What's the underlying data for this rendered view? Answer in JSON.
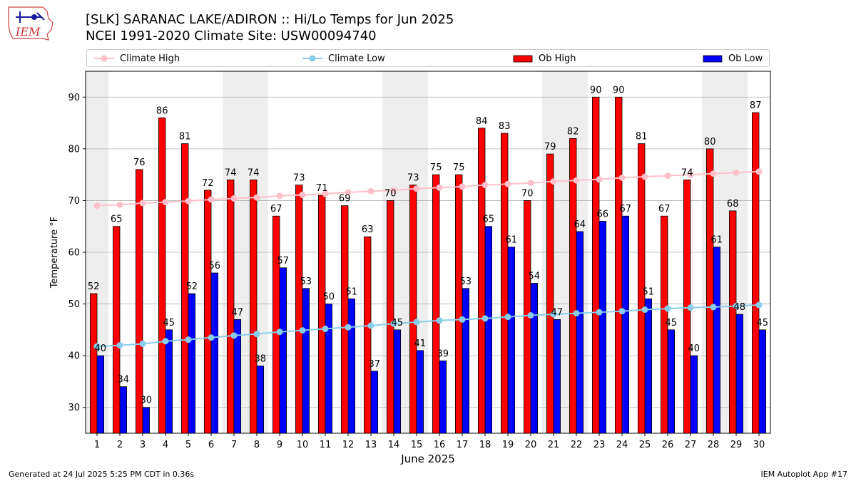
{
  "title_line1": "[SLK] SARANAC LAKE/ADIRON :: Hi/Lo Temps for Jun 2025",
  "title_line2": "NCEI 1991-2020 Climate Site: USW00094740",
  "logo_text": "IEM",
  "footer_left": "Generated at 24 Jul 2025 5:25 PM CDT in 0.36s",
  "footer_right": "IEM Autoplot App #17",
  "colors": {
    "ob_high": "#ff0000",
    "ob_low": "#0000ff",
    "climate_high": "#ffc0cb",
    "climate_low": "#87ceeb",
    "weekend_shade": "#eeeeee",
    "grid": "#b0b0b0"
  },
  "chart_data": {
    "type": "bar",
    "xlabel": "June 2025",
    "ylabel": "Temperature °F",
    "ylim": [
      25,
      95
    ],
    "yticks": [
      30,
      40,
      50,
      60,
      70,
      80,
      90
    ],
    "grid": "horizontal",
    "legend_position": "top",
    "categories": [
      "1",
      "2",
      "3",
      "4",
      "5",
      "6",
      "7",
      "8",
      "9",
      "10",
      "11",
      "12",
      "13",
      "14",
      "15",
      "16",
      "17",
      "18",
      "19",
      "20",
      "21",
      "22",
      "23",
      "24",
      "25",
      "26",
      "27",
      "28",
      "29",
      "30"
    ],
    "shaded_days": [
      1,
      7,
      8,
      14,
      15,
      21,
      22,
      28,
      29
    ],
    "series": [
      {
        "name": "Ob High",
        "type": "bar",
        "values": [
          52,
          65,
          76,
          86,
          81,
          72,
          74,
          74,
          67,
          73,
          71,
          69,
          63,
          70,
          73,
          75,
          75,
          84,
          83,
          70,
          79,
          82,
          90,
          90,
          81,
          67,
          74,
          80,
          68,
          87
        ]
      },
      {
        "name": "Ob Low",
        "type": "bar",
        "values": [
          40,
          34,
          30,
          45,
          52,
          56,
          47,
          38,
          57,
          53,
          50,
          51,
          37,
          45,
          41,
          39,
          53,
          65,
          61,
          54,
          47,
          64,
          66,
          67,
          51,
          45,
          40,
          61,
          48,
          45
        ]
      },
      {
        "name": "Climate High",
        "type": "line",
        "values": [
          69.0,
          69.2,
          69.5,
          69.7,
          69.9,
          70.2,
          70.4,
          70.6,
          70.9,
          71.1,
          71.3,
          71.6,
          71.8,
          72.0,
          72.3,
          72.5,
          72.7,
          73.0,
          73.2,
          73.4,
          73.7,
          73.9,
          74.1,
          74.4,
          74.6,
          74.8,
          75.0,
          75.2,
          75.4,
          75.6
        ]
      },
      {
        "name": "Climate Low",
        "type": "line",
        "values": [
          41.8,
          42.0,
          42.3,
          42.8,
          43.1,
          43.5,
          43.9,
          44.2,
          44.6,
          44.9,
          45.2,
          45.5,
          45.8,
          46.2,
          46.5,
          46.8,
          47.0,
          47.2,
          47.5,
          47.8,
          48.0,
          48.2,
          48.4,
          48.6,
          48.9,
          49.1,
          49.3,
          49.4,
          49.6,
          49.8
        ]
      }
    ]
  }
}
